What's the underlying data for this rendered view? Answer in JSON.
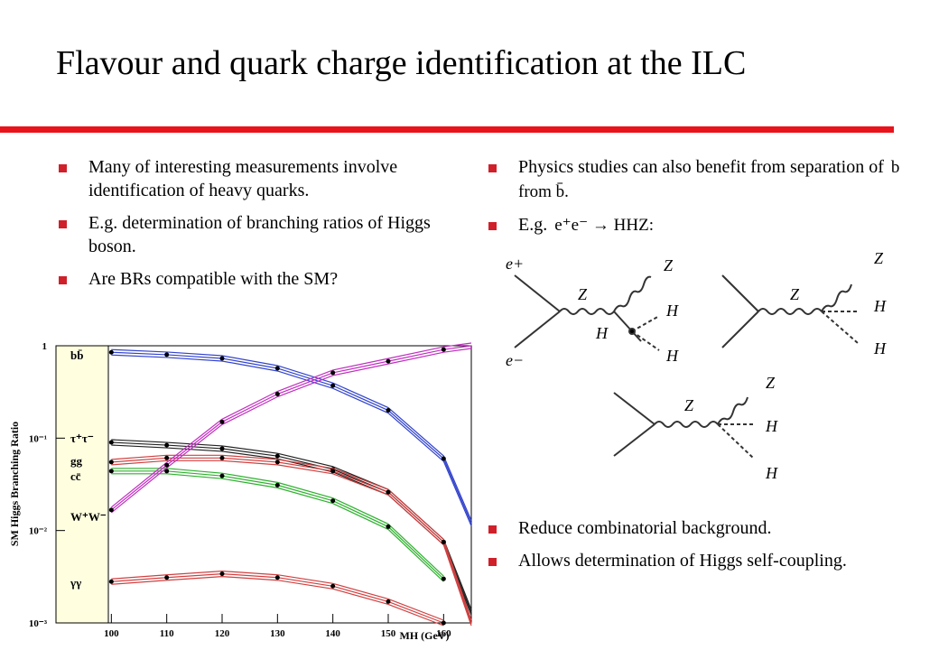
{
  "header": {
    "title": "Flavour and quark charge identification at the ILC"
  },
  "left_bullets": [
    "Many of interesting measurements involve identification of heavy quarks.",
    "E.g. determination of branching ratios of Higgs boson.",
    "Are BRs compatible with the SM?"
  ],
  "right_bullets": [
    {
      "text": "Physics studies can also benefit from separation of",
      "formula": "b from b̄."
    },
    {
      "text": "E.g.",
      "formula": "e⁺e⁻ → HHZ:"
    }
  ],
  "bottom_bullets": [
    "Reduce combinatorial background.",
    "Allows determination of Higgs self-coupling."
  ],
  "feynman": {
    "e_plus": "e+",
    "e_minus": "e−",
    "z": "Z",
    "h": "H"
  },
  "chart_data": {
    "type": "line",
    "y_label": "SM Higgs Branching Ratio",
    "x_label": "MH (GeV)",
    "x": [
      100,
      110,
      120,
      130,
      140,
      150,
      160,
      165
    ],
    "xlim": [
      90,
      165
    ],
    "xticks": [
      100,
      110,
      120,
      130,
      140,
      150,
      160
    ],
    "ylim": [
      0.001,
      1
    ],
    "log_y": true,
    "yticks": [
      1,
      {
        "value": 0.1,
        "label": "10⁻¹"
      },
      {
        "value": 0.01,
        "label": "10⁻²"
      },
      {
        "value": 0.001,
        "label": "10⁻³"
      }
    ],
    "series": [
      {
        "name": "bb̄",
        "color": "#3344cc",
        "values": [
          0.85,
          0.8,
          0.73,
          0.57,
          0.37,
          0.2,
          0.06,
          0.012
        ]
      },
      {
        "name": "τ⁺τ⁻",
        "color": "#222222",
        "values": [
          0.09,
          0.084,
          0.077,
          0.064,
          0.046,
          0.026,
          0.0075,
          0.0013
        ]
      },
      {
        "name": "gg",
        "color": "#d04040",
        "values": [
          0.055,
          0.061,
          0.061,
          0.055,
          0.044,
          0.026,
          0.0075,
          0.001
        ]
      },
      {
        "name": "cc̄",
        "color": "#30b030",
        "values": [
          0.044,
          0.044,
          0.039,
          0.031,
          0.021,
          0.011,
          0.003,
          null
        ]
      },
      {
        "name": "W⁺W⁻",
        "color": "#c030c0",
        "values": [
          0.0167,
          0.051,
          0.15,
          0.3,
          0.51,
          0.68,
          0.91,
          1
        ]
      },
      {
        "name": "γγ",
        "color": "#d04040",
        "values": [
          0.0028,
          0.0031,
          0.0034,
          0.0031,
          0.0025,
          0.0017,
          0.001,
          null
        ]
      }
    ]
  }
}
